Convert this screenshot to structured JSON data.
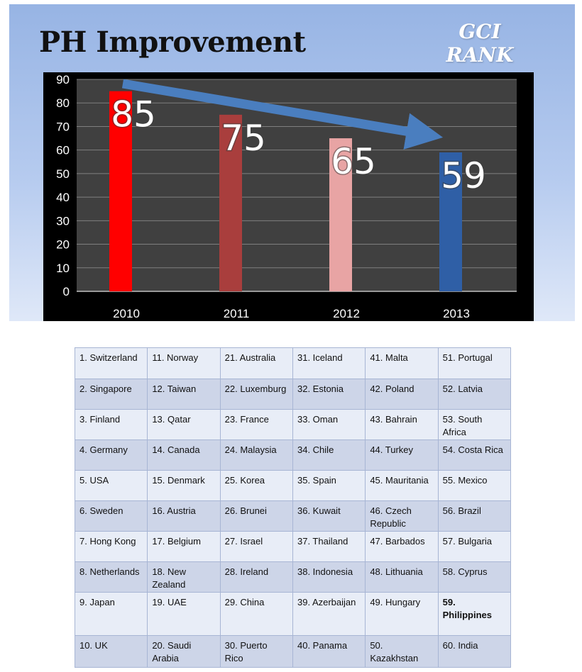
{
  "slide": {
    "title": "PH Improvement",
    "badge": [
      "GCI",
      "RANK"
    ]
  },
  "chart_data": {
    "type": "bar",
    "title": "",
    "xlabel": "",
    "ylabel": "",
    "categories": [
      "2010",
      "2011",
      "2012",
      "2013"
    ],
    "values": [
      85,
      75,
      65,
      59
    ],
    "data_labels": [
      "85",
      "75",
      "65",
      "59"
    ],
    "bar_colors": [
      "#ff0000",
      "#a93e3d",
      "#e8a4a4",
      "#2f5fa6"
    ],
    "ylim": [
      0,
      90
    ],
    "yticks": [
      "0",
      "10",
      "20",
      "30",
      "40",
      "50",
      "60",
      "70",
      "80",
      "90"
    ],
    "grid": true,
    "legend": "none",
    "annotation": "blue arrow trending downward from 2010 to 2013",
    "colors": {
      "background": "#000000",
      "plot_area": "#404040",
      "gridline": "#7f7f7f",
      "arrow": "#4a7ebf"
    }
  },
  "ranking_table": {
    "columns": [
      [
        "1. Switzerland",
        "2. Singapore",
        "3. Finland",
        "4. Germany",
        "5. USA",
        "6. Sweden",
        "7. Hong Kong",
        "8. Netherlands",
        "9. Japan",
        "10. UK"
      ],
      [
        "11. Norway",
        "12. Taiwan",
        "13. Qatar",
        "14. Canada",
        "15. Denmark",
        "16. Austria",
        "17. Belgium",
        "18. New Zealand",
        "19. UAE",
        "20. Saudi Arabia"
      ],
      [
        "21. Australia",
        "22. Luxemburg",
        "23. France",
        "24. Malaysia",
        "25. Korea",
        "26. Brunei",
        "27. Israel",
        "28. Ireland",
        "29. China",
        "30. Puerto Rico"
      ],
      [
        "31. Iceland",
        "32. Estonia",
        "33. Oman",
        "34. Chile",
        "35. Spain",
        "36. Kuwait",
        "37. Thailand",
        "38. Indonesia",
        "39. Azerbaijan",
        "40. Panama"
      ],
      [
        "41. Malta",
        "42. Poland",
        "43. Bahrain",
        "44. Turkey",
        "45. Mauritania",
        "46. Czech Republic",
        "47. Barbados",
        "48. Lithuania",
        "49. Hungary",
        "50. Kazakhstan"
      ],
      [
        "51. Portugal",
        "52. Latvia",
        "53. South Africa",
        "54. Costa Rica",
        "55. Mexico",
        "56. Brazil",
        "57. Bulgaria",
        "58. Cyprus",
        "59. Philippines",
        "60. India"
      ]
    ],
    "highlight": "59. Philippines"
  }
}
